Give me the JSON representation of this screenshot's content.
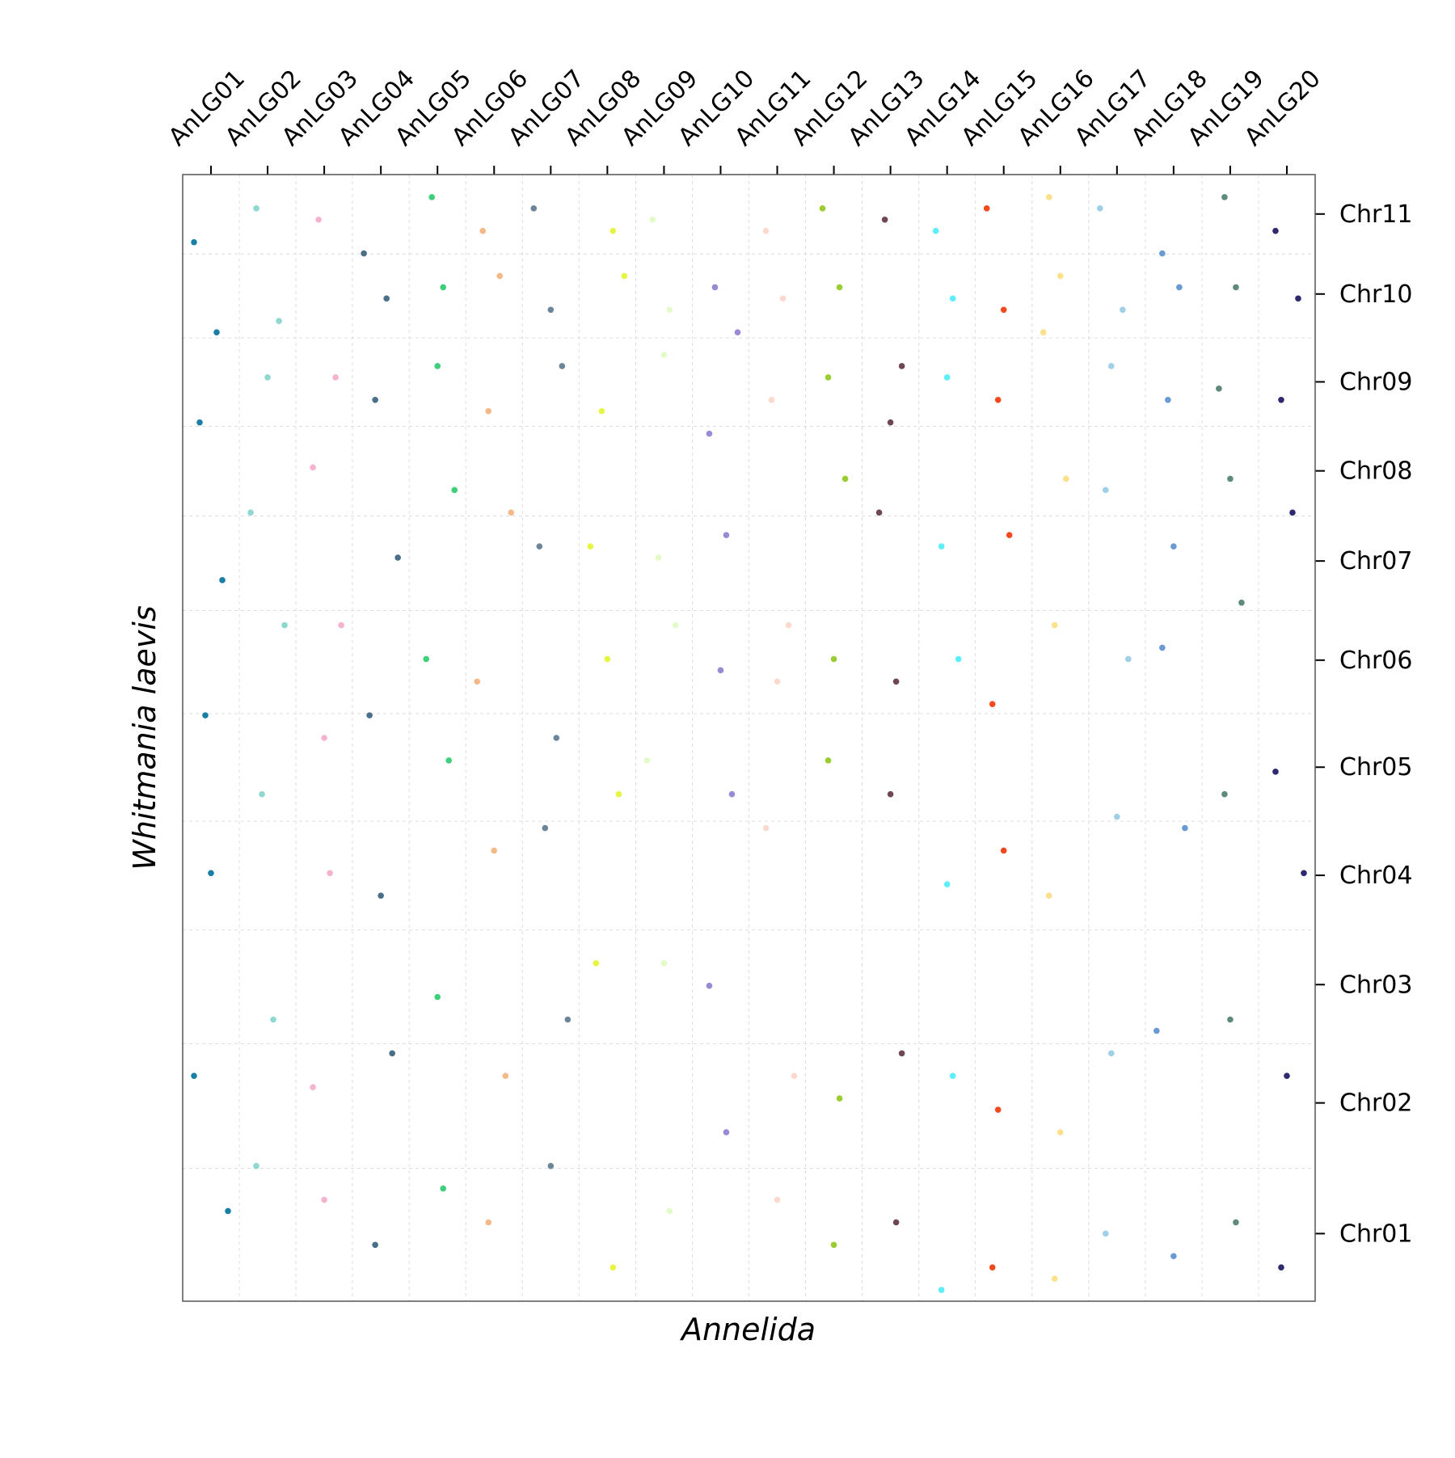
{
  "chart_data": {
    "type": "scatter",
    "x_label": "Annelida",
    "y_label": "Whitmania laevis",
    "xlim": [
      0,
      20
    ],
    "ylim": [
      0,
      100
    ],
    "xticks": [
      {
        "value": 0.5,
        "label": "AnLG01"
      },
      {
        "value": 1.5,
        "label": "AnLG02"
      },
      {
        "value": 2.5,
        "label": "AnLG03"
      },
      {
        "value": 3.5,
        "label": "AnLG04"
      },
      {
        "value": 4.5,
        "label": "AnLG05"
      },
      {
        "value": 5.5,
        "label": "AnLG06"
      },
      {
        "value": 6.5,
        "label": "AnLG07"
      },
      {
        "value": 7.5,
        "label": "AnLG08"
      },
      {
        "value": 8.5,
        "label": "AnLG09"
      },
      {
        "value": 9.5,
        "label": "AnLG10"
      },
      {
        "value": 10.5,
        "label": "AnLG11"
      },
      {
        "value": 11.5,
        "label": "AnLG12"
      },
      {
        "value": 12.5,
        "label": "AnLG13"
      },
      {
        "value": 13.5,
        "label": "AnLG14"
      },
      {
        "value": 14.5,
        "label": "AnLG15"
      },
      {
        "value": 15.5,
        "label": "AnLG16"
      },
      {
        "value": 16.5,
        "label": "AnLG17"
      },
      {
        "value": 17.5,
        "label": "AnLG18"
      },
      {
        "value": 18.5,
        "label": "AnLG19"
      },
      {
        "value": 19.5,
        "label": "AnLG20"
      }
    ],
    "yticks": [
      {
        "value": 6.0,
        "label": "Chr01"
      },
      {
        "value": 17.6,
        "label": "Chr02"
      },
      {
        "value": 28.1,
        "label": "Chr03"
      },
      {
        "value": 37.8,
        "label": "Chr04"
      },
      {
        "value": 47.4,
        "label": "Chr05"
      },
      {
        "value": 56.9,
        "label": "Chr06"
      },
      {
        "value": 65.7,
        "label": "Chr07"
      },
      {
        "value": 73.7,
        "label": "Chr08"
      },
      {
        "value": 81.6,
        "label": "Chr09"
      },
      {
        "value": 89.4,
        "label": "Chr10"
      },
      {
        "value": 96.5,
        "label": "Chr11"
      }
    ],
    "grid": true,
    "series": [
      {
        "color": "#1a7fa6",
        "x": [
          0.2,
          0.6,
          0.3,
          0.7,
          0.4,
          0.5,
          0.2,
          0.8
        ],
        "values": [
          94,
          86,
          78,
          64,
          52,
          38,
          20,
          8
        ]
      },
      {
        "color": "#8dd8cf",
        "x": [
          1.3,
          1.7,
          1.5,
          1.2,
          1.8,
          1.4,
          1.6,
          1.3
        ],
        "values": [
          97,
          87,
          82,
          70,
          60,
          45,
          25,
          12
        ]
      },
      {
        "color": "#f5b3cf",
        "x": [
          2.4,
          2.7,
          2.3,
          2.8,
          2.5,
          2.6,
          2.3,
          2.5
        ],
        "values": [
          96,
          82,
          74,
          60,
          50,
          38,
          19,
          9
        ]
      },
      {
        "color": "#4a6f8a",
        "x": [
          3.2,
          3.6,
          3.4,
          3.8,
          3.3,
          3.5,
          3.7,
          3.4
        ],
        "values": [
          93,
          89,
          80,
          66,
          52,
          36,
          22,
          5
        ]
      },
      {
        "color": "#3ecf7a",
        "x": [
          4.4,
          4.6,
          4.5,
          4.8,
          4.3,
          4.7,
          4.5,
          4.6
        ],
        "values": [
          98,
          90,
          83,
          72,
          57,
          48,
          27,
          10
        ]
      },
      {
        "color": "#f5b887",
        "x": [
          5.3,
          5.6,
          5.4,
          5.8,
          5.2,
          5.5,
          5.7,
          5.4
        ],
        "values": [
          95,
          91,
          79,
          70,
          55,
          40,
          20,
          7
        ]
      },
      {
        "color": "#6b8599",
        "x": [
          6.2,
          6.5,
          6.7,
          6.3,
          6.6,
          6.4,
          6.8,
          6.5
        ],
        "values": [
          97,
          88,
          83,
          67,
          50,
          42,
          25,
          12
        ]
      },
      {
        "color": "#e6f542",
        "x": [
          7.6,
          7.8,
          7.4,
          7.2,
          7.5,
          7.7,
          7.3,
          7.6
        ],
        "values": [
          95,
          91,
          79,
          67,
          57,
          45,
          30,
          3
        ]
      },
      {
        "color": "#e2fbc8",
        "x": [
          8.3,
          8.6,
          8.5,
          8.4,
          8.7,
          8.2,
          8.5,
          8.6
        ],
        "values": [
          96,
          88,
          84,
          66,
          60,
          48,
          30,
          8
        ]
      },
      {
        "color": "#9a8ad6",
        "x": [
          9.4,
          9.8,
          9.3,
          9.6,
          9.5,
          9.7,
          9.3,
          9.6
        ],
        "values": [
          90,
          86,
          77,
          68,
          56,
          45,
          28,
          15
        ]
      },
      {
        "color": "#fcd9cf",
        "x": [
          10.3,
          10.6,
          10.4,
          10.7,
          10.5,
          10.3,
          10.8,
          10.5
        ],
        "values": [
          95,
          89,
          80,
          60,
          55,
          42,
          20,
          9
        ]
      },
      {
        "color": "#9acd32",
        "x": [
          11.3,
          11.6,
          11.4,
          11.7,
          11.5,
          11.4,
          11.6,
          11.5
        ],
        "values": [
          97,
          90,
          82,
          73,
          57,
          48,
          18,
          5
        ]
      },
      {
        "color": "#6e4656",
        "x": [
          12.4,
          12.7,
          12.5,
          12.3,
          12.6,
          12.5,
          12.7,
          12.6
        ],
        "values": [
          96,
          83,
          78,
          70,
          55,
          45,
          22,
          7
        ]
      },
      {
        "color": "#5ceefa",
        "x": [
          13.3,
          13.6,
          13.5,
          13.4,
          13.7,
          13.5,
          13.6,
          13.4
        ],
        "values": [
          95,
          89,
          82,
          67,
          57,
          37,
          20,
          1
        ]
      },
      {
        "color": "#f24a1e",
        "x": [
          14.2,
          14.5,
          14.4,
          14.6,
          14.3,
          14.5,
          14.4,
          14.3
        ],
        "values": [
          97,
          88,
          80,
          68,
          53,
          40,
          17,
          3
        ]
      },
      {
        "color": "#fce08a",
        "x": [
          15.3,
          15.5,
          15.2,
          15.6,
          15.4,
          15.3,
          15.5,
          15.4
        ],
        "values": [
          98,
          91,
          86,
          73,
          60,
          36,
          15,
          2
        ]
      },
      {
        "color": "#9fd0e6",
        "x": [
          16.2,
          16.6,
          16.4,
          16.3,
          16.7,
          16.5,
          16.4,
          16.3
        ],
        "values": [
          97,
          88,
          83,
          72,
          57,
          43,
          22,
          6
        ]
      },
      {
        "color": "#6a9ad4",
        "x": [
          17.3,
          17.6,
          17.4,
          17.5,
          17.3,
          17.7,
          17.2,
          17.5
        ],
        "values": [
          93,
          90,
          80,
          67,
          58,
          42,
          24,
          4
        ]
      },
      {
        "color": "#5e8a7a",
        "x": [
          18.4,
          18.6,
          18.3,
          18.5,
          18.7,
          18.4,
          18.5,
          18.6
        ],
        "values": [
          98,
          90,
          81,
          73,
          62,
          45,
          25,
          7
        ]
      },
      {
        "color": "#2f2a70",
        "x": [
          19.3,
          19.7,
          19.4,
          19.6,
          19.3,
          19.8,
          19.5,
          19.4
        ],
        "values": [
          95,
          89,
          80,
          70,
          47,
          38,
          20,
          3
        ]
      }
    ]
  }
}
